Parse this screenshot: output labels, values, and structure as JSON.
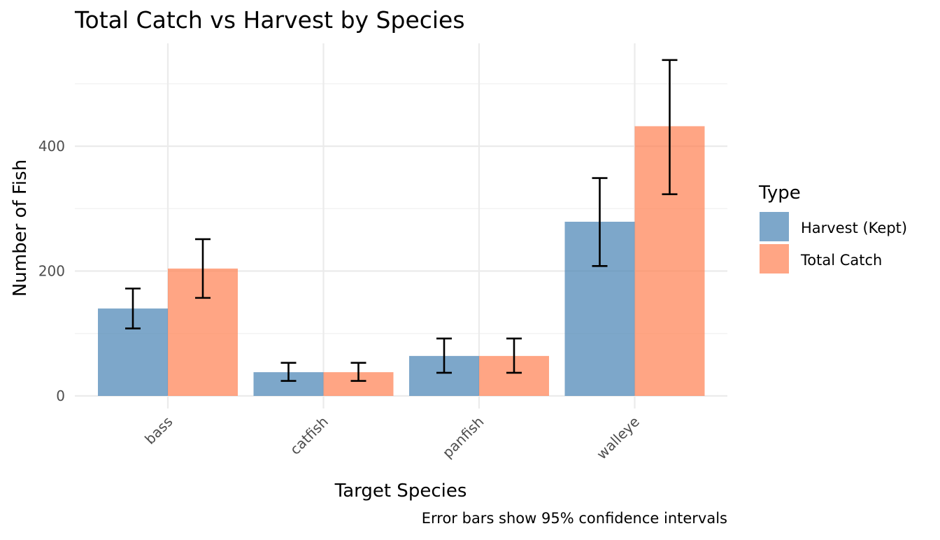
{
  "chart_data": {
    "type": "bar",
    "title": "Total Catch vs Harvest by Species",
    "xlabel": "Target Species",
    "ylabel": "Number of Fish",
    "caption": "Error bars show 95% confidence intervals",
    "categories": [
      "bass",
      "catfish",
      "panfish",
      "walleye"
    ],
    "ylim": [
      0,
      540
    ],
    "yticks": [
      0,
      200,
      400
    ],
    "y_minor_ticks": [
      100,
      300,
      500
    ],
    "grid": true,
    "legend": {
      "title": "Type",
      "position": "right"
    },
    "series": [
      {
        "name": "Harvest (Kept)",
        "color": "#4682B4",
        "values": [
          140,
          38,
          64,
          279
        ],
        "ci_lower": [
          108,
          24,
          37,
          208
        ],
        "ci_upper": [
          172,
          53,
          92,
          349
        ]
      },
      {
        "name": "Total Catch",
        "color": "#FF7F50",
        "values": [
          204,
          38,
          64,
          432
        ],
        "ci_lower": [
          157,
          24,
          37,
          323
        ],
        "ci_upper": [
          251,
          53,
          92,
          538
        ]
      }
    ]
  }
}
